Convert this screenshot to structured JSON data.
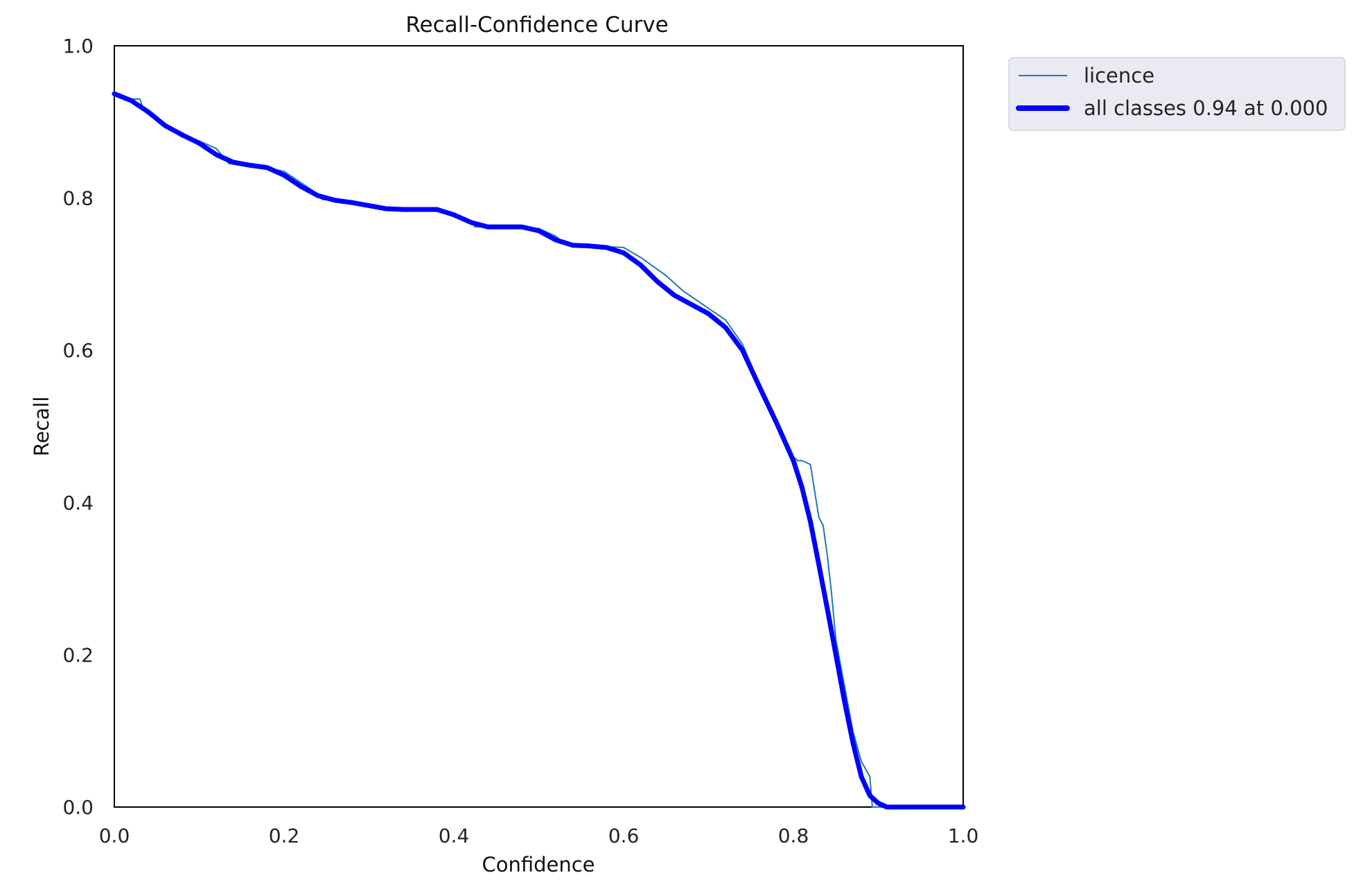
{
  "chart_data": {
    "type": "line",
    "title": "Recall-Confidence Curve",
    "xlabel": "Confidence",
    "ylabel": "Recall",
    "xlim": [
      0,
      1
    ],
    "ylim": [
      0,
      1
    ],
    "x_ticks": [
      "0.0",
      "0.2",
      "0.4",
      "0.6",
      "0.8",
      "1.0"
    ],
    "y_ticks": [
      "0.0",
      "0.2",
      "0.4",
      "0.6",
      "0.8",
      "1.0"
    ],
    "grid": false,
    "legend_position": "outside-top-right",
    "series": [
      {
        "name": "licence",
        "color": "#1f77b4",
        "style": "thin",
        "x": [
          0.0,
          0.01,
          0.03,
          0.035,
          0.05,
          0.06,
          0.08,
          0.1,
          0.12,
          0.135,
          0.15,
          0.18,
          0.2,
          0.22,
          0.24,
          0.245,
          0.26,
          0.3,
          0.35,
          0.38,
          0.4,
          0.42,
          0.425,
          0.45,
          0.5,
          0.52,
          0.53,
          0.55,
          0.6,
          0.62,
          0.65,
          0.67,
          0.7,
          0.72,
          0.74,
          0.76,
          0.78,
          0.8,
          0.805,
          0.81,
          0.82,
          0.83,
          0.835,
          0.84,
          0.845,
          0.85,
          0.86,
          0.87,
          0.88,
          0.89,
          0.893,
          0.9,
          0.91,
          0.92,
          1.0
        ],
        "y": [
          0.94,
          0.93,
          0.93,
          0.915,
          0.905,
          0.895,
          0.88,
          0.875,
          0.865,
          0.845,
          0.845,
          0.84,
          0.835,
          0.82,
          0.805,
          0.798,
          0.797,
          0.79,
          0.785,
          0.785,
          0.78,
          0.77,
          0.762,
          0.762,
          0.76,
          0.75,
          0.74,
          0.738,
          0.735,
          0.722,
          0.698,
          0.678,
          0.655,
          0.64,
          0.608,
          0.555,
          0.505,
          0.46,
          0.455,
          0.455,
          0.45,
          0.38,
          0.37,
          0.33,
          0.28,
          0.22,
          0.16,
          0.1,
          0.06,
          0.04,
          0.0,
          0.0,
          0.0,
          0.0,
          0.0
        ]
      },
      {
        "name": "all classes 0.94 at 0.000",
        "color": "#0000ff",
        "style": "thick",
        "x": [
          0.0,
          0.02,
          0.04,
          0.06,
          0.08,
          0.1,
          0.12,
          0.14,
          0.16,
          0.18,
          0.2,
          0.22,
          0.24,
          0.26,
          0.28,
          0.3,
          0.32,
          0.34,
          0.36,
          0.38,
          0.4,
          0.42,
          0.44,
          0.46,
          0.48,
          0.5,
          0.52,
          0.54,
          0.56,
          0.58,
          0.6,
          0.62,
          0.64,
          0.66,
          0.68,
          0.7,
          0.72,
          0.74,
          0.76,
          0.78,
          0.8,
          0.81,
          0.82,
          0.83,
          0.84,
          0.85,
          0.86,
          0.87,
          0.88,
          0.89,
          0.9,
          0.91,
          0.92,
          0.95,
          1.0
        ],
        "y": [
          0.937,
          0.928,
          0.913,
          0.895,
          0.883,
          0.872,
          0.857,
          0.847,
          0.843,
          0.84,
          0.83,
          0.815,
          0.803,
          0.797,
          0.794,
          0.79,
          0.786,
          0.785,
          0.785,
          0.785,
          0.778,
          0.768,
          0.762,
          0.762,
          0.762,
          0.757,
          0.745,
          0.738,
          0.737,
          0.735,
          0.728,
          0.712,
          0.69,
          0.672,
          0.66,
          0.648,
          0.63,
          0.6,
          0.552,
          0.505,
          0.455,
          0.42,
          0.375,
          0.318,
          0.26,
          0.2,
          0.14,
          0.085,
          0.04,
          0.015,
          0.005,
          0.0,
          0.0,
          0.0,
          0.0
        ]
      }
    ]
  }
}
